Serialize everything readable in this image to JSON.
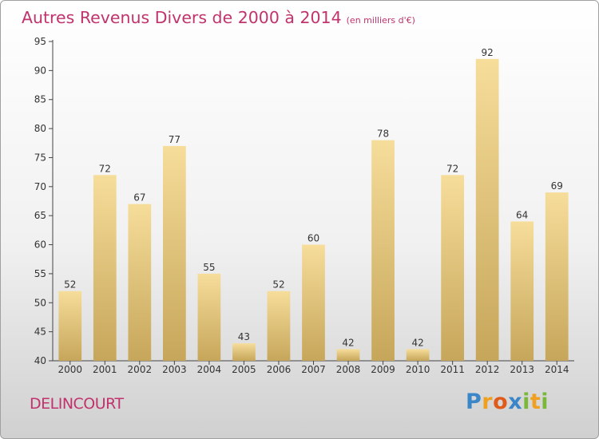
{
  "title": "Autres Revenus Divers de 2000 à 2014",
  "subtitle": "(en milliers d'€)",
  "commune": "DELINCOURT",
  "logo": {
    "text": "Proxiti"
  },
  "colors": {
    "title": "#c0336c",
    "bar_light": "#f6dd9a",
    "bar_dark": "#c6a65a"
  },
  "chart_data": {
    "type": "bar",
    "categories": [
      "2000",
      "2001",
      "2002",
      "2003",
      "2004",
      "2005",
      "2006",
      "2007",
      "2008",
      "2009",
      "2010",
      "2011",
      "2012",
      "2013",
      "2014"
    ],
    "values": [
      52,
      72,
      67,
      77,
      55,
      43,
      52,
      60,
      42,
      78,
      42,
      72,
      92,
      64,
      69
    ],
    "ylim": [
      40,
      95
    ],
    "yticks": [
      40,
      45,
      50,
      55,
      60,
      65,
      70,
      75,
      80,
      85,
      90,
      95
    ],
    "data_labels": true,
    "grid": false
  }
}
